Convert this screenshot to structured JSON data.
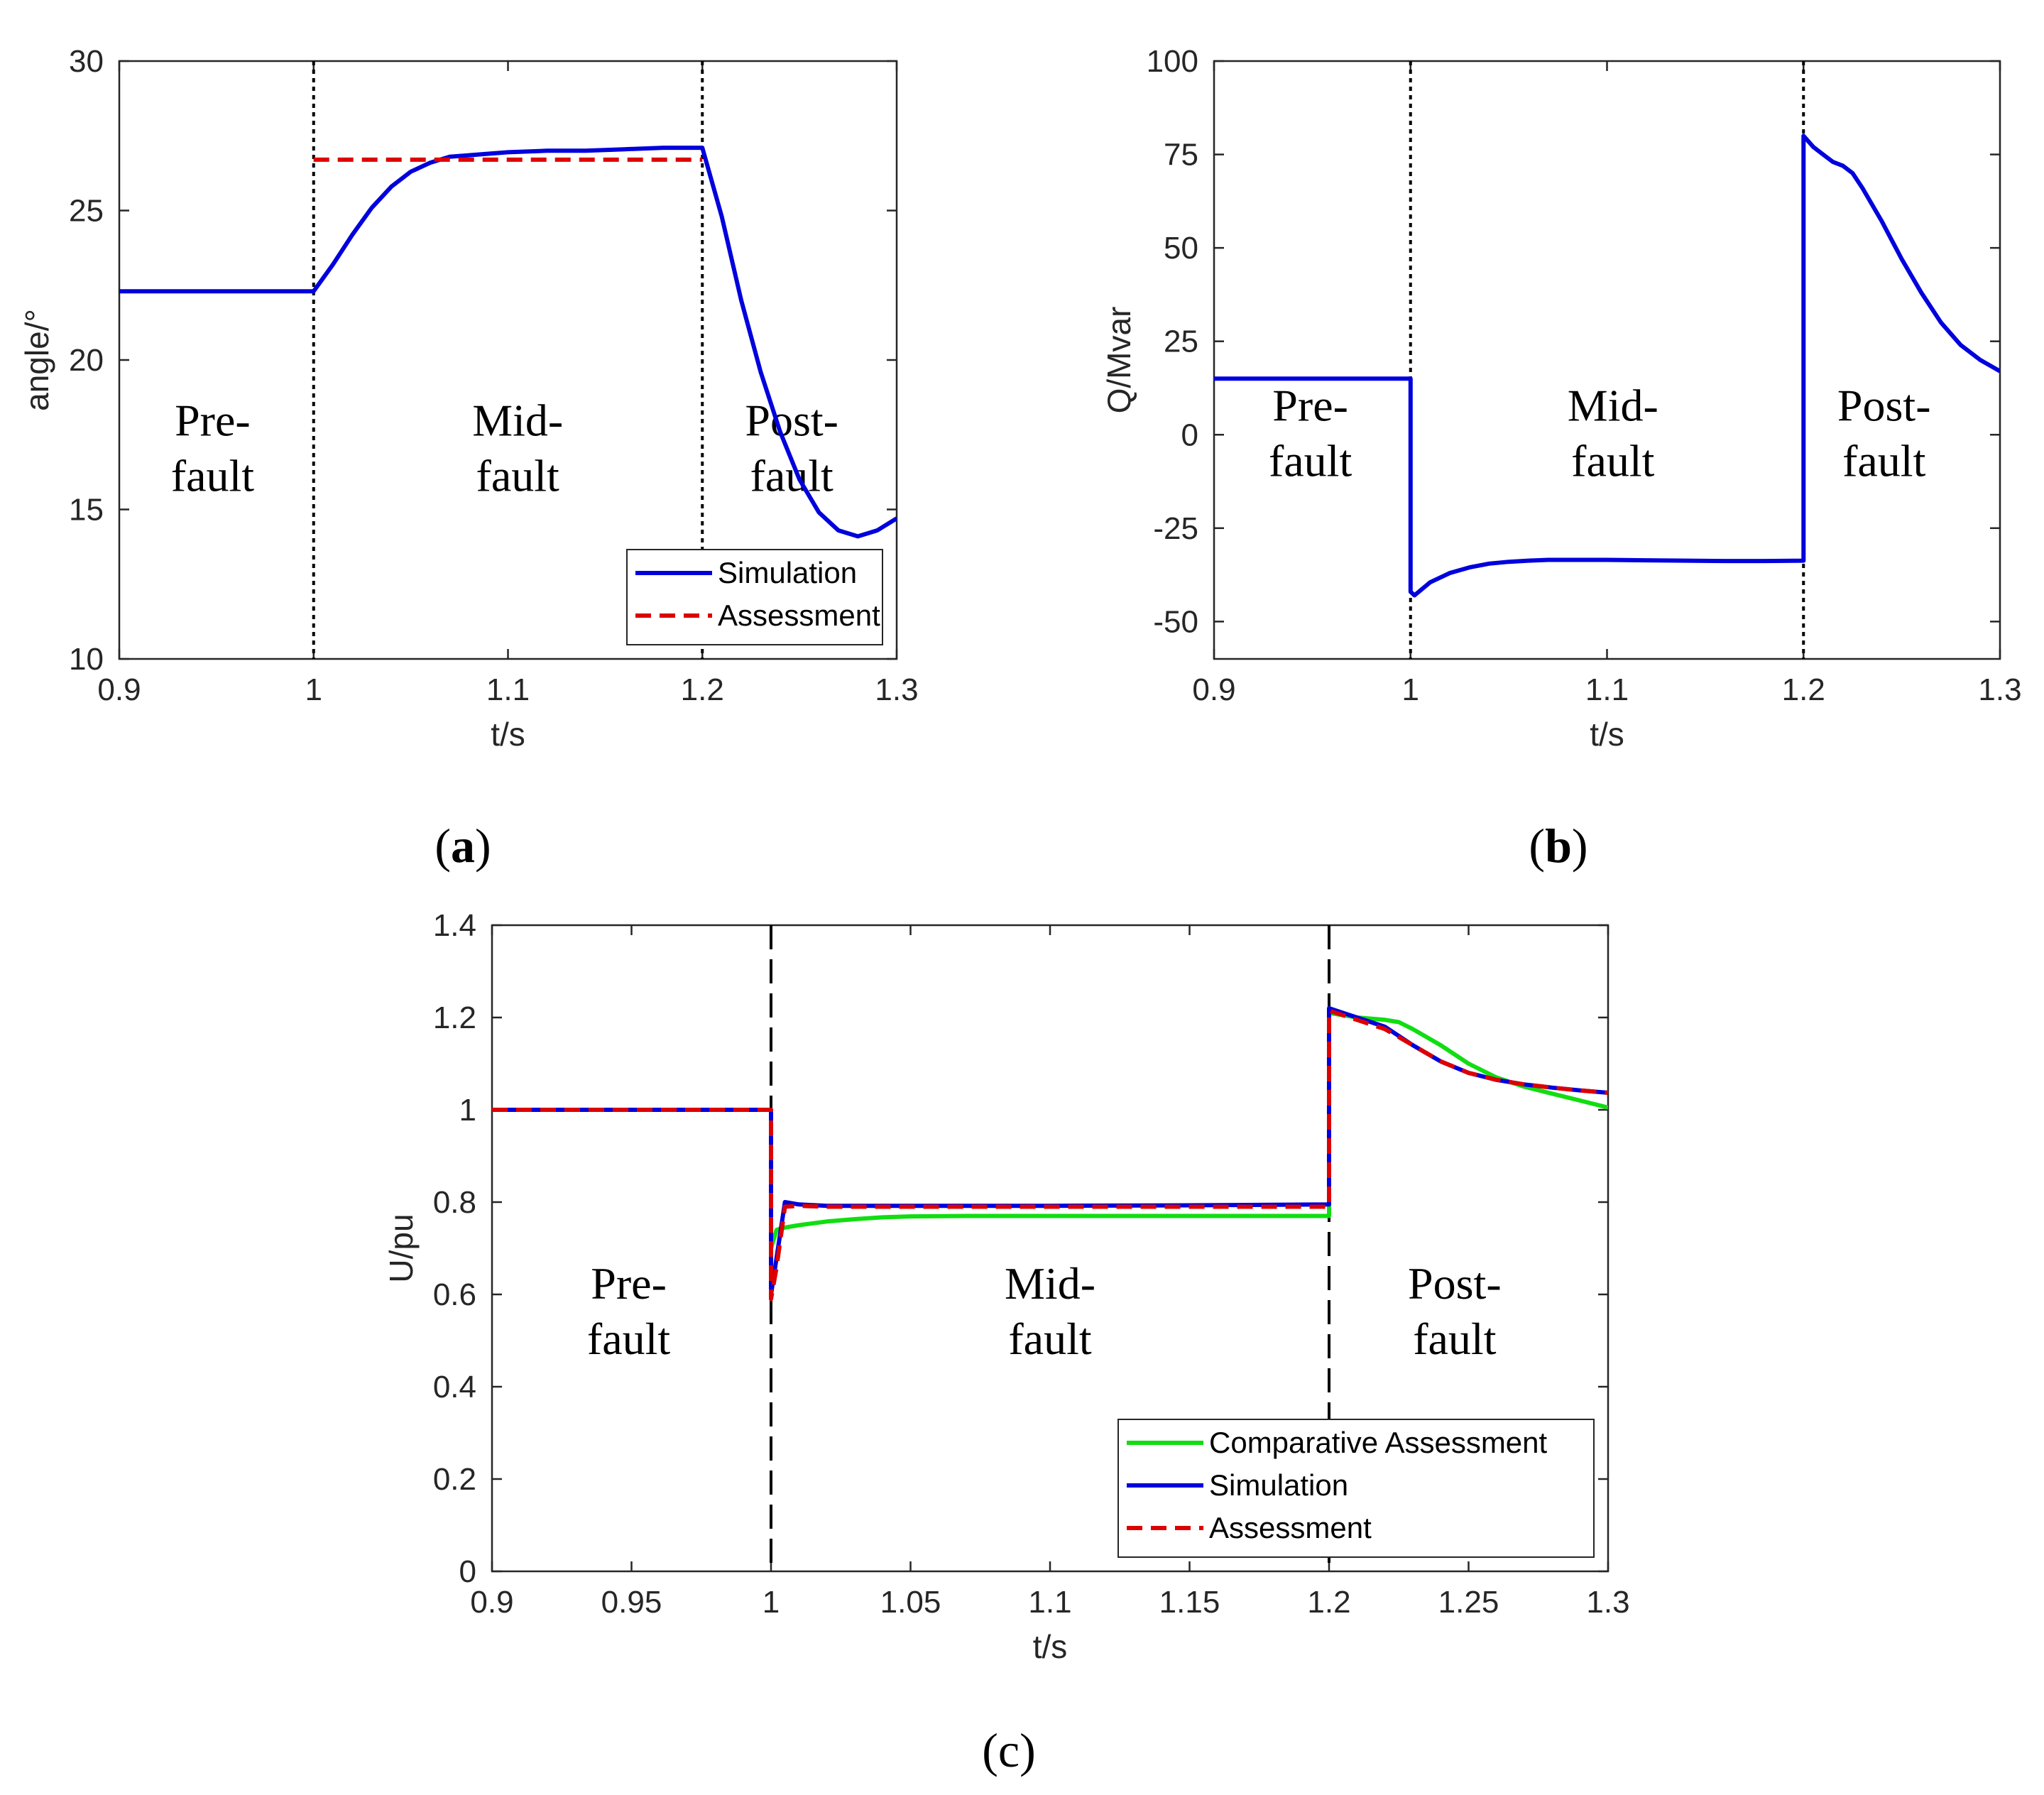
{
  "figure": {
    "captions": [
      "(a)",
      "(b)",
      "(c)"
    ],
    "caption_letters": [
      "a",
      "b",
      "c"
    ]
  },
  "chart_data": [
    {
      "id": "a",
      "type": "line",
      "xlabel": "t/s",
      "ylabel": "angle/°",
      "xlim": [
        0.9,
        1.3
      ],
      "ylim": [
        10,
        30
      ],
      "xticks": [
        0.9,
        1,
        1.1,
        1.2,
        1.3
      ],
      "xtick_labels": [
        "0.9",
        "1",
        "1.1",
        "1.2",
        "1.3"
      ],
      "yticks": [
        10,
        15,
        20,
        25,
        30
      ],
      "ytick_labels": [
        "10",
        "15",
        "20",
        "25",
        "30"
      ],
      "fault_lines": [
        1.0,
        1.2
      ],
      "fault_line_style": "dotted",
      "regions": [
        {
          "x": 0.948,
          "y": 17.0,
          "lines": [
            "Pre-",
            "fault"
          ]
        },
        {
          "x": 1.105,
          "y": 17.0,
          "lines": [
            "Mid-",
            "fault"
          ]
        },
        {
          "x": 1.246,
          "y": 17.0,
          "lines": [
            "Post-",
            "fault"
          ]
        }
      ],
      "legend_position": "bottom-right",
      "series": [
        {
          "name": "Simulation",
          "color": "#0000dd",
          "style": "solid",
          "x": [
            0.9,
            0.95,
            1.0,
            1.01,
            1.02,
            1.03,
            1.04,
            1.05,
            1.06,
            1.07,
            1.08,
            1.09,
            1.1,
            1.12,
            1.14,
            1.16,
            1.18,
            1.2,
            1.21,
            1.22,
            1.23,
            1.24,
            1.25,
            1.26,
            1.27,
            1.28,
            1.29,
            1.3
          ],
          "y": [
            22.3,
            22.3,
            22.3,
            23.2,
            24.2,
            25.1,
            25.8,
            26.3,
            26.6,
            26.8,
            26.85,
            26.9,
            26.95,
            27.0,
            27.0,
            27.05,
            27.1,
            27.1,
            24.8,
            22.0,
            19.6,
            17.6,
            16.0,
            14.9,
            14.3,
            14.1,
            14.3,
            14.7
          ]
        },
        {
          "name": "Assessment",
          "color": "#dd0000",
          "style": "dashed",
          "x": [
            1.0,
            1.2
          ],
          "y": [
            26.7,
            26.7
          ]
        }
      ]
    },
    {
      "id": "b",
      "type": "line",
      "xlabel": "t/s",
      "ylabel": "Q/Mvar",
      "xlim": [
        0.9,
        1.3
      ],
      "ylim": [
        -60,
        100
      ],
      "xticks": [
        0.9,
        1,
        1.1,
        1.2,
        1.3
      ],
      "xtick_labels": [
        "0.9",
        "1",
        "1.1",
        "1.2",
        "1.3"
      ],
      "yticks": [
        -50,
        -25,
        0,
        25,
        50,
        75,
        100
      ],
      "ytick_labels": [
        "-50",
        "-25",
        "0",
        "25",
        "50",
        "75",
        "100"
      ],
      "fault_lines": [
        1.0,
        1.2
      ],
      "fault_line_style": "dotted",
      "regions": [
        {
          "x": 0.949,
          "y": 0,
          "lines": [
            "Pre-",
            "fault"
          ]
        },
        {
          "x": 1.103,
          "y": 0,
          "lines": [
            "Mid-",
            "fault"
          ]
        },
        {
          "x": 1.241,
          "y": 0,
          "lines": [
            "Post-",
            "fault"
          ]
        }
      ],
      "legend_position": "none",
      "series": [
        {
          "name": "Q",
          "color": "#0000dd",
          "style": "solid",
          "x": [
            0.9,
            0.95,
            1.0,
            1.0,
            1.002,
            1.01,
            1.02,
            1.03,
            1.04,
            1.05,
            1.06,
            1.07,
            1.08,
            1.1,
            1.12,
            1.14,
            1.16,
            1.18,
            1.2,
            1.2,
            1.205,
            1.21,
            1.215,
            1.22,
            1.225,
            1.23,
            1.24,
            1.25,
            1.26,
            1.27,
            1.28,
            1.29,
            1.3
          ],
          "y": [
            15,
            15,
            15,
            -42,
            -43,
            -39.5,
            -37,
            -35.5,
            -34.5,
            -34,
            -33.7,
            -33.5,
            -33.5,
            -33.5,
            -33.6,
            -33.7,
            -33.8,
            -33.8,
            -33.7,
            80,
            77,
            75,
            73,
            72,
            70,
            66,
            57,
            47,
            38,
            30,
            24,
            20,
            17
          ]
        }
      ]
    },
    {
      "id": "c",
      "type": "line",
      "xlabel": "t/s",
      "ylabel": "U/pu",
      "xlim": [
        0.9,
        1.3
      ],
      "ylim": [
        0,
        1.4
      ],
      "xticks": [
        0.9,
        0.95,
        1,
        1.05,
        1.1,
        1.15,
        1.2,
        1.25,
        1.3
      ],
      "xtick_labels": [
        "0.9",
        "0.95",
        "1",
        "1.05",
        "1.1",
        "1.15",
        "1.2",
        "1.25",
        "1.3"
      ],
      "yticks": [
        0,
        0.2,
        0.4,
        0.6,
        0.8,
        1,
        1.2,
        1.4
      ],
      "ytick_labels": [
        "0",
        "0.2",
        "0.4",
        "0.6",
        "0.8",
        "1",
        "1.2",
        "1.4"
      ],
      "fault_lines": [
        1.0,
        1.2
      ],
      "fault_line_style": "dashed",
      "regions": [
        {
          "x": 0.949,
          "y": 0.56,
          "lines": [
            "Pre-",
            "fault"
          ]
        },
        {
          "x": 1.1,
          "y": 0.56,
          "lines": [
            "Mid-",
            "fault"
          ]
        },
        {
          "x": 1.245,
          "y": 0.56,
          "lines": [
            "Post-",
            "fault"
          ]
        }
      ],
      "legend_position": "bottom-right",
      "series": [
        {
          "name": "Comparative Assessment",
          "color": "#11dd11",
          "style": "solid",
          "x": [
            0.9,
            0.95,
            1.0,
            1.0,
            1.002,
            1.005,
            1.01,
            1.02,
            1.03,
            1.04,
            1.05,
            1.07,
            1.1,
            1.15,
            1.2,
            1.2,
            1.21,
            1.22,
            1.225,
            1.23,
            1.24,
            1.25,
            1.26,
            1.27,
            1.28,
            1.29,
            1.3
          ],
          "y": [
            1.0,
            1.0,
            1.0,
            0.7,
            0.74,
            0.745,
            0.75,
            0.758,
            0.763,
            0.767,
            0.769,
            0.77,
            0.77,
            0.77,
            0.77,
            1.21,
            1.2,
            1.195,
            1.19,
            1.175,
            1.14,
            1.1,
            1.07,
            1.05,
            1.035,
            1.02,
            1.005
          ]
        },
        {
          "name": "Simulation",
          "color": "#0000dd",
          "style": "solid",
          "x": [
            0.9,
            0.95,
            1.0,
            1.0,
            1.002,
            1.005,
            1.01,
            1.02,
            1.05,
            1.1,
            1.15,
            1.2,
            1.2,
            1.21,
            1.22,
            1.23,
            1.24,
            1.25,
            1.26,
            1.27,
            1.28,
            1.29,
            1.3
          ],
          "y": [
            1.0,
            1.0,
            1.0,
            0.6,
            0.68,
            0.8,
            0.795,
            0.792,
            0.792,
            0.792,
            0.793,
            0.795,
            1.22,
            1.2,
            1.18,
            1.14,
            1.105,
            1.08,
            1.065,
            1.055,
            1.048,
            1.042,
            1.037
          ]
        },
        {
          "name": "Assessment",
          "color": "#dd0000",
          "style": "dashed",
          "x": [
            0.9,
            0.95,
            1.0,
            1.0,
            1.002,
            1.005,
            1.01,
            1.02,
            1.05,
            1.1,
            1.15,
            1.2,
            1.2,
            1.21,
            1.22,
            1.23,
            1.24,
            1.25,
            1.26,
            1.27,
            1.28,
            1.29,
            1.3
          ],
          "y": [
            1.0,
            1.0,
            1.0,
            0.59,
            0.66,
            0.79,
            0.792,
            0.79,
            0.79,
            0.79,
            0.79,
            0.79,
            1.215,
            1.195,
            1.175,
            1.14,
            1.105,
            1.08,
            1.065,
            1.055,
            1.048,
            1.042,
            1.037
          ]
        }
      ]
    }
  ]
}
